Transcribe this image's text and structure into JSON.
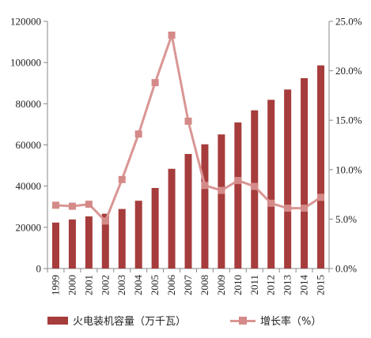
{
  "chart_data": {
    "type": "bar+line",
    "categories": [
      "1999",
      "2000",
      "2001",
      "2002",
      "2003",
      "2004",
      "2005",
      "2006",
      "2007",
      "2008",
      "2009",
      "2010",
      "2011",
      "2012",
      "2013",
      "2014",
      "2015"
    ],
    "series": [
      {
        "name": "火电装机容量（万千瓦）",
        "type": "bar",
        "axis": "left",
        "values": [
          22300,
          23800,
          25300,
          26600,
          28900,
          32900,
          39100,
          48400,
          55600,
          60300,
          65100,
          70900,
          76800,
          81900,
          86900,
          92400,
          98600
        ]
      },
      {
        "name": "增长率（%）",
        "type": "line",
        "axis": "right",
        "values": [
          6.4,
          6.3,
          6.5,
          4.8,
          9.0,
          13.6,
          18.8,
          23.6,
          14.9,
          8.4,
          7.9,
          8.9,
          8.3,
          6.6,
          6.1,
          6.1,
          7.2
        ]
      }
    ],
    "y_left": {
      "ylim": [
        0,
        120000
      ],
      "ticks": [
        "0",
        "20000",
        "40000",
        "60000",
        "80000",
        "100000",
        "120000"
      ]
    },
    "y_right": {
      "ylim": [
        0,
        25
      ],
      "ticks": [
        "0.0%",
        "5.0%",
        "10.0%",
        "15.0%",
        "20.0%",
        "25.0%"
      ]
    },
    "grid": false,
    "legend_position": "bottom",
    "colors": {
      "bar": "#a63c3c",
      "line": "#d99694",
      "marker": "#d48a88",
      "axis": "#888888"
    }
  },
  "legend": {
    "bar_label": "火电装机容量（万千瓦）",
    "line_label": "增长率（%）"
  }
}
